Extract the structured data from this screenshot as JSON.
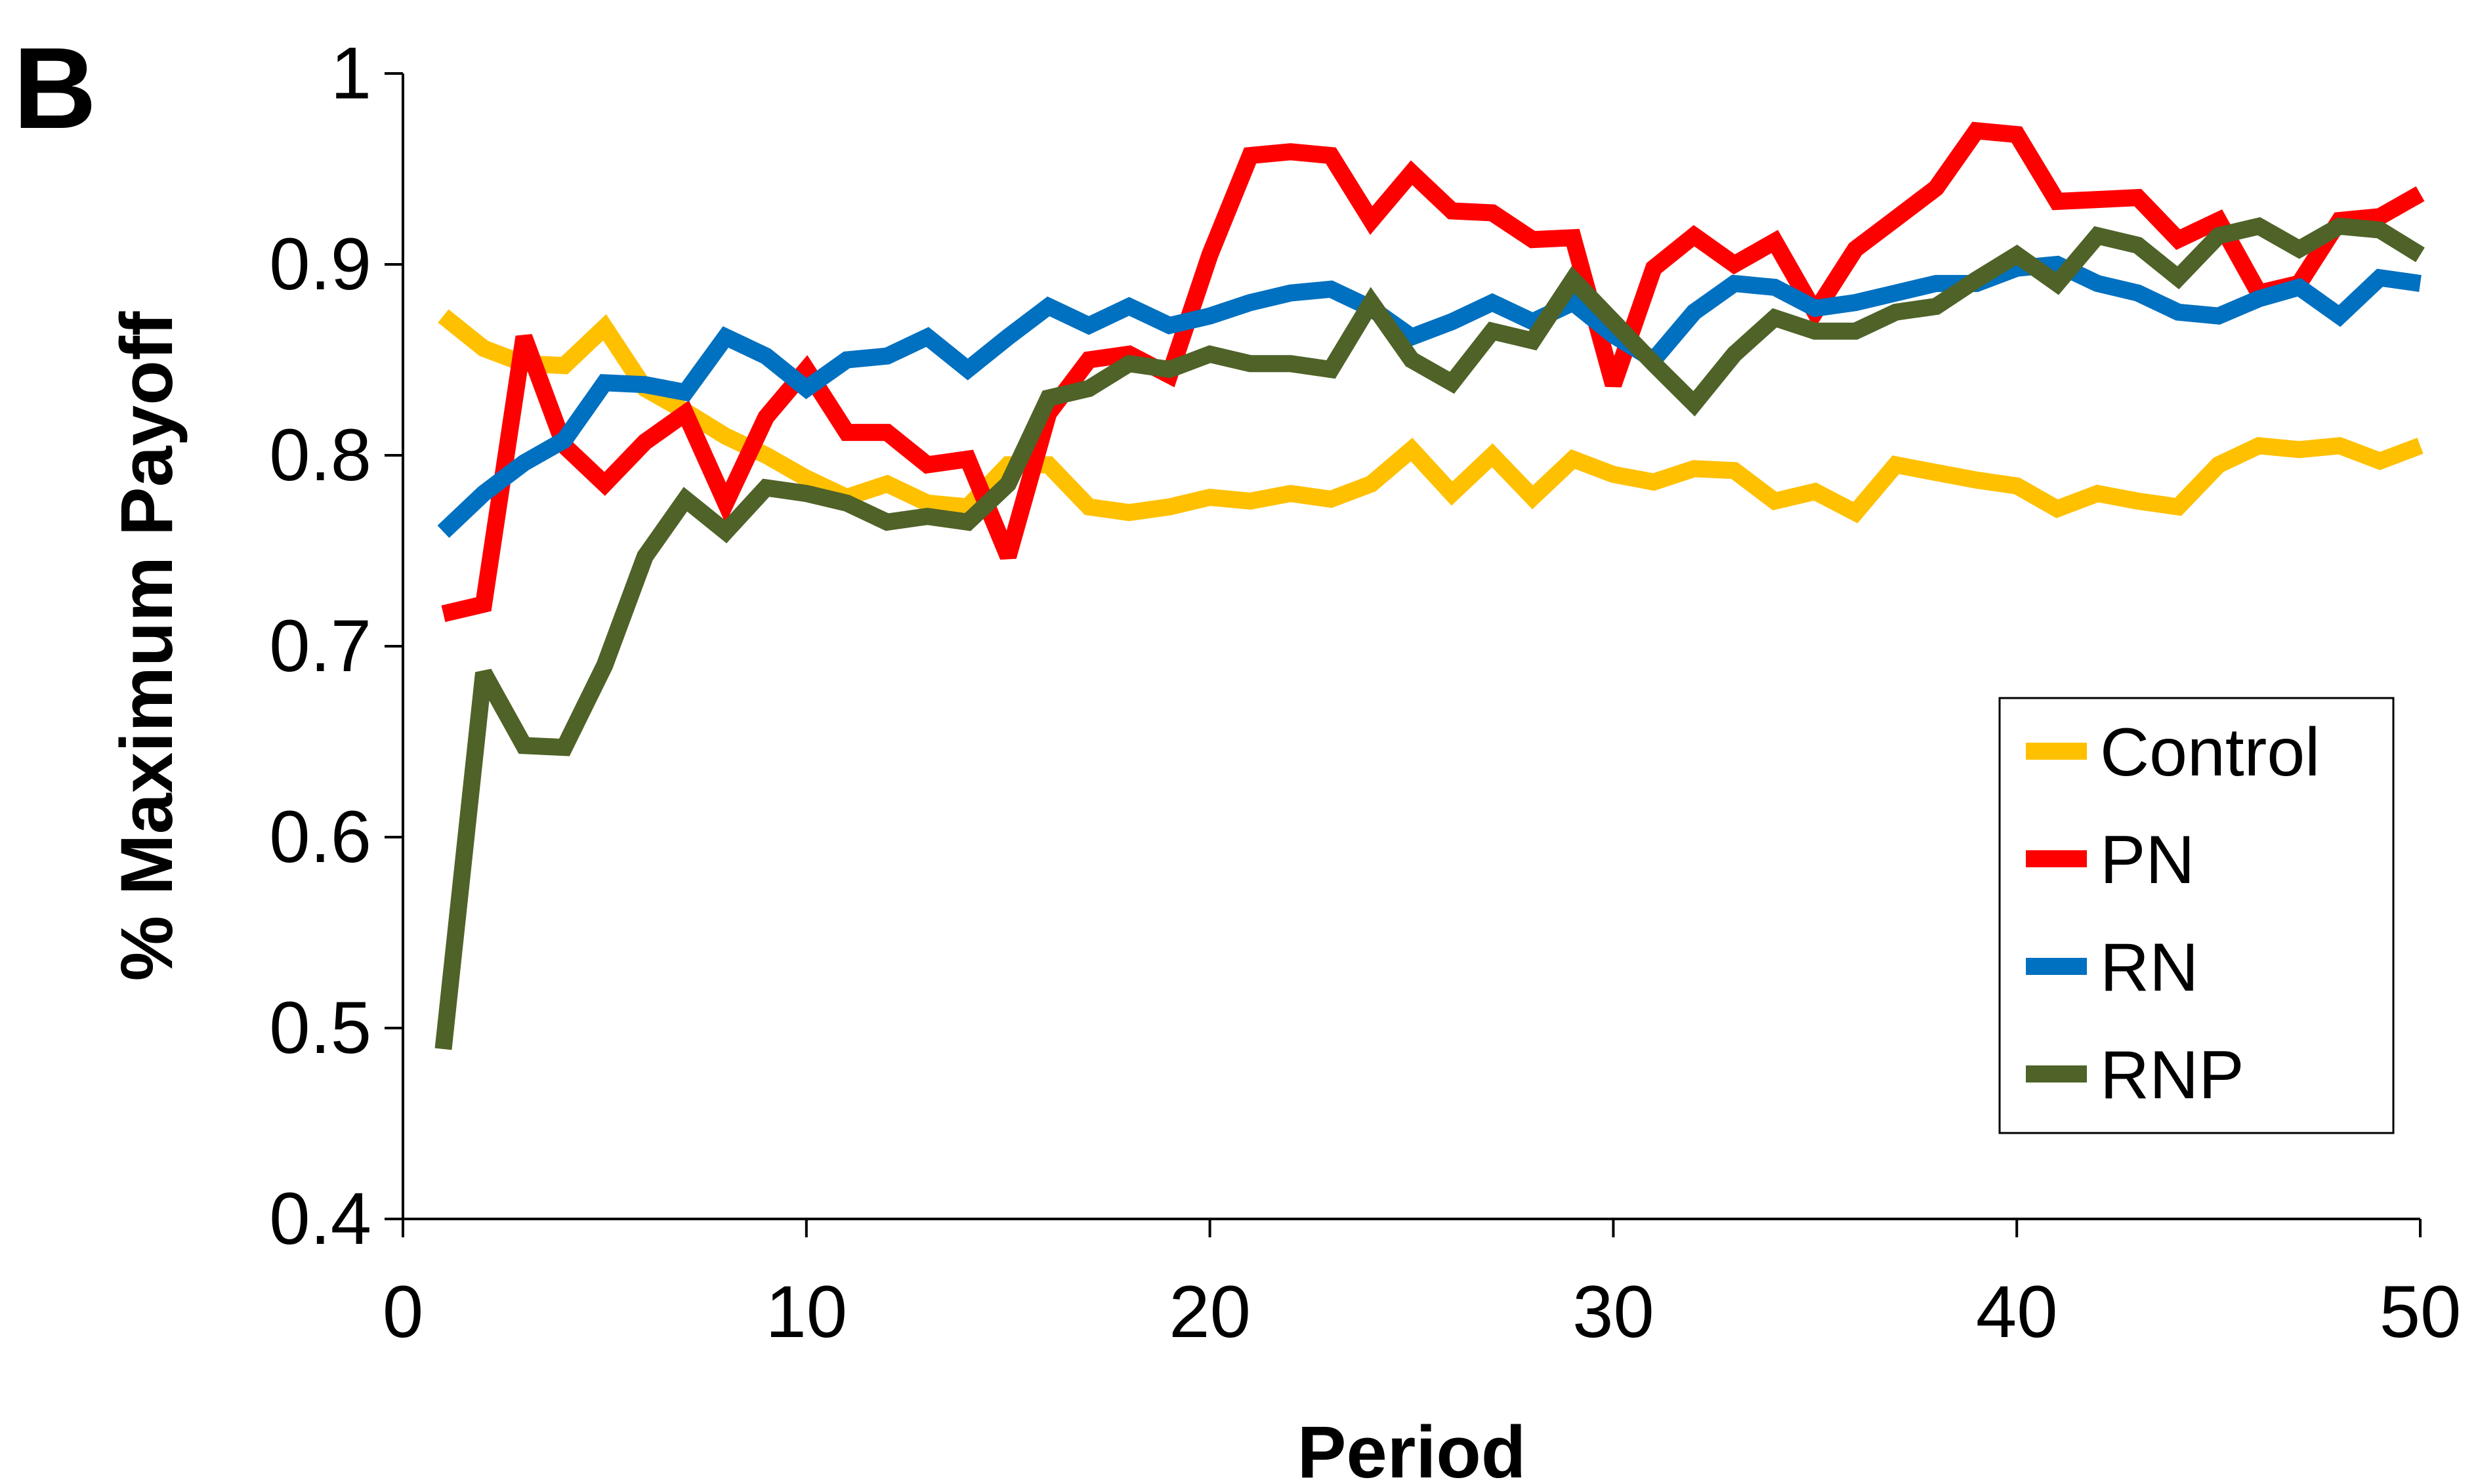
{
  "panel_label": "B",
  "chart_data": {
    "type": "line",
    "xlabel": "Period",
    "ylabel": "% Maximum Payoff",
    "xlim": [
      0,
      50
    ],
    "ylim": [
      0.4,
      1
    ],
    "xticks": [
      "0",
      "10",
      "20",
      "30",
      "40",
      "50"
    ],
    "yticks": [
      "0.4",
      "0.5",
      "0.6",
      "0.7",
      "0.8",
      "0.9",
      "1"
    ],
    "grid": false,
    "legend_position": "bottom-right",
    "x": [
      1,
      2,
      3,
      4,
      5,
      6,
      7,
      8,
      9,
      10,
      11,
      12,
      13,
      14,
      15,
      16,
      17,
      18,
      19,
      20,
      21,
      22,
      23,
      24,
      25,
      26,
      27,
      28,
      29,
      30,
      31,
      32,
      33,
      34,
      35,
      36,
      37,
      38,
      39,
      40,
      41,
      42,
      43,
      44,
      45,
      46,
      47,
      48,
      49,
      50
    ],
    "series": [
      {
        "name": "Control",
        "color": "#FFC000",
        "values": [
          0.873,
          0.856,
          0.848,
          0.847,
          0.867,
          0.835,
          0.823,
          0.81,
          0.8,
          0.788,
          0.778,
          0.785,
          0.775,
          0.773,
          0.795,
          0.795,
          0.773,
          0.77,
          0.773,
          0.778,
          0.776,
          0.78,
          0.777,
          0.785,
          0.803,
          0.78,
          0.8,
          0.778,
          0.798,
          0.79,
          0.786,
          0.793,
          0.792,
          0.776,
          0.781,
          0.77,
          0.795,
          0.791,
          0.787,
          0.784,
          0.772,
          0.78,
          0.776,
          0.773,
          0.795,
          0.805,
          0.803,
          0.805,
          0.797,
          0.805
        ]
      },
      {
        "name": "PN",
        "color": "#FF0000",
        "values": [
          0.717,
          0.722,
          0.862,
          0.805,
          0.785,
          0.807,
          0.822,
          0.775,
          0.82,
          0.845,
          0.812,
          0.812,
          0.795,
          0.798,
          0.747,
          0.822,
          0.85,
          0.853,
          0.842,
          0.905,
          0.957,
          0.959,
          0.957,
          0.923,
          0.948,
          0.928,
          0.927,
          0.913,
          0.914,
          0.837,
          0.898,
          0.915,
          0.9,
          0.912,
          0.875,
          0.908,
          0.924,
          0.94,
          0.97,
          0.968,
          0.933,
          0.934,
          0.935,
          0.913,
          0.923,
          0.885,
          0.89,
          0.923,
          0.925,
          0.937
        ]
      },
      {
        "name": "RN",
        "color": "#0070C0",
        "values": [
          0.76,
          0.78,
          0.796,
          0.808,
          0.838,
          0.837,
          0.833,
          0.862,
          0.852,
          0.835,
          0.85,
          0.852,
          0.862,
          0.845,
          0.862,
          0.878,
          0.868,
          0.878,
          0.868,
          0.873,
          0.88,
          0.885,
          0.887,
          0.877,
          0.862,
          0.87,
          0.88,
          0.87,
          0.88,
          0.863,
          0.85,
          0.875,
          0.89,
          0.888,
          0.877,
          0.88,
          0.885,
          0.89,
          0.89,
          0.898,
          0.9,
          0.89,
          0.885,
          0.875,
          0.873,
          0.882,
          0.888,
          0.873,
          0.893,
          0.89
        ]
      },
      {
        "name": "RNP",
        "color": "#4F6228",
        "values": [
          0.489,
          0.686,
          0.648,
          0.647,
          0.69,
          0.747,
          0.777,
          0.76,
          0.783,
          0.78,
          0.775,
          0.765,
          0.768,
          0.765,
          0.785,
          0.83,
          0.835,
          0.848,
          0.845,
          0.853,
          0.848,
          0.848,
          0.845,
          0.88,
          0.85,
          0.838,
          0.865,
          0.86,
          0.892,
          0.87,
          0.848,
          0.827,
          0.853,
          0.872,
          0.865,
          0.865,
          0.875,
          0.878,
          0.892,
          0.905,
          0.89,
          0.915,
          0.91,
          0.893,
          0.915,
          0.92,
          0.908,
          0.92,
          0.918,
          0.905
        ]
      }
    ]
  }
}
